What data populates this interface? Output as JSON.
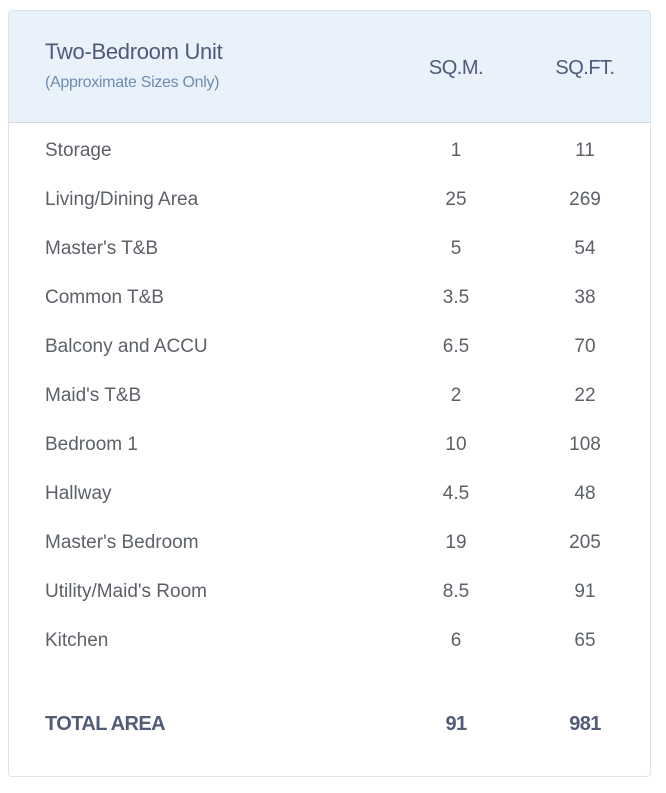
{
  "header": {
    "title": "Two-Bedroom Unit",
    "subtitle": "(Approximate Sizes Only)",
    "col_sqm": "SQ.M.",
    "col_sqft": "SQ.FT."
  },
  "rows": [
    {
      "name": "Storage",
      "sqm": "1",
      "sqft": "11"
    },
    {
      "name": "Living/Dining Area",
      "sqm": "25",
      "sqft": "269"
    },
    {
      "name": "Master's T&B",
      "sqm": "5",
      "sqft": "54"
    },
    {
      "name": "Common T&B",
      "sqm": "3.5",
      "sqft": "38"
    },
    {
      "name": "Balcony and ACCU",
      "sqm": "6.5",
      "sqft": "70"
    },
    {
      "name": "Maid's T&B",
      "sqm": "2",
      "sqft": "22"
    },
    {
      "name": "Bedroom 1",
      "sqm": "10",
      "sqft": "108"
    },
    {
      "name": "Hallway",
      "sqm": "4.5",
      "sqft": "48"
    },
    {
      "name": "Master's Bedroom",
      "sqm": "19",
      "sqft": "205"
    },
    {
      "name": "Utility/Maid's Room",
      "sqm": "8.5",
      "sqft": "91"
    },
    {
      "name": "Kitchen",
      "sqm": "6",
      "sqft": "65"
    }
  ],
  "total": {
    "name": "TOTAL AREA",
    "sqm": "91",
    "sqft": "981"
  }
}
